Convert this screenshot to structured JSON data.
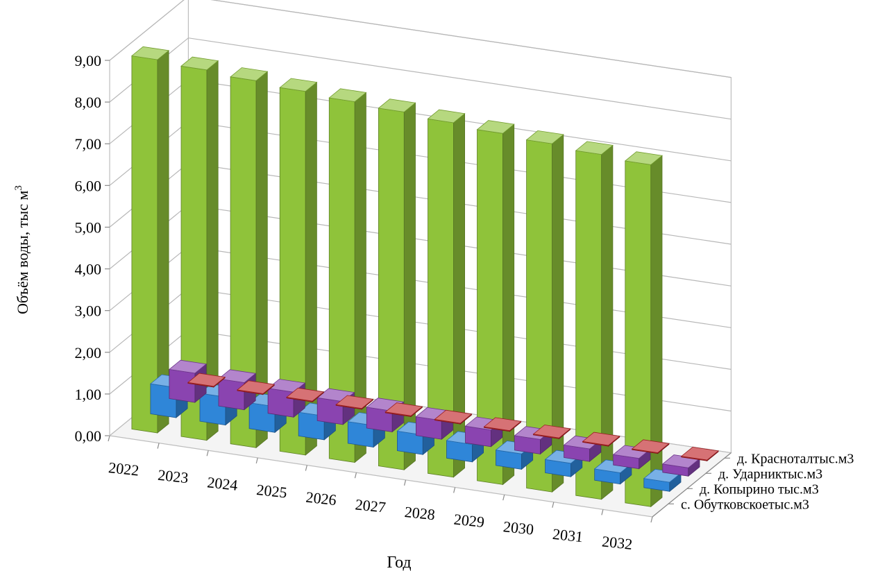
{
  "chart_data": {
    "type": "bar",
    "subtype": "3d-column",
    "title": "",
    "xlabel": "Год",
    "ylabel": "Объём воды, тыс м",
    "ylabel_superscript": "3",
    "ylim": [
      0,
      9
    ],
    "ytick_step": 1,
    "ytick_labels": [
      "0,00",
      "1,00",
      "2,00",
      "3,00",
      "4,00",
      "5,00",
      "6,00",
      "7,00",
      "8,00",
      "9,00"
    ],
    "grid": true,
    "categories": [
      "2022",
      "2023",
      "2024",
      "2025",
      "2026",
      "2027",
      "2028",
      "2029",
      "2030",
      "2031",
      "2032"
    ],
    "series": [
      {
        "name": "д. Красноталтыс.м3",
        "color": "#c0262a",
        "values": [
          0.02,
          0.02,
          0.02,
          0.02,
          0.02,
          0.02,
          0.02,
          0.02,
          0.02,
          0.02,
          0.02
        ]
      },
      {
        "name": "д. Ударниктыс.м3",
        "color": "#8a44b0",
        "values": [
          0.7,
          0.65,
          0.6,
          0.55,
          0.5,
          0.45,
          0.4,
          0.35,
          0.3,
          0.25,
          0.2
        ]
      },
      {
        "name": "д. Копырино тыс.м3",
        "color": "#2f86d8",
        "values": [
          0.72,
          0.67,
          0.62,
          0.57,
          0.52,
          0.47,
          0.42,
          0.37,
          0.32,
          0.27,
          0.22
        ]
      },
      {
        "name": "с. Обутковскоетыс.м3",
        "color": "#8fc33a",
        "values": [
          8.95,
          8.88,
          8.8,
          8.72,
          8.65,
          8.58,
          8.5,
          8.42,
          8.35,
          8.27,
          8.2
        ]
      }
    ]
  }
}
